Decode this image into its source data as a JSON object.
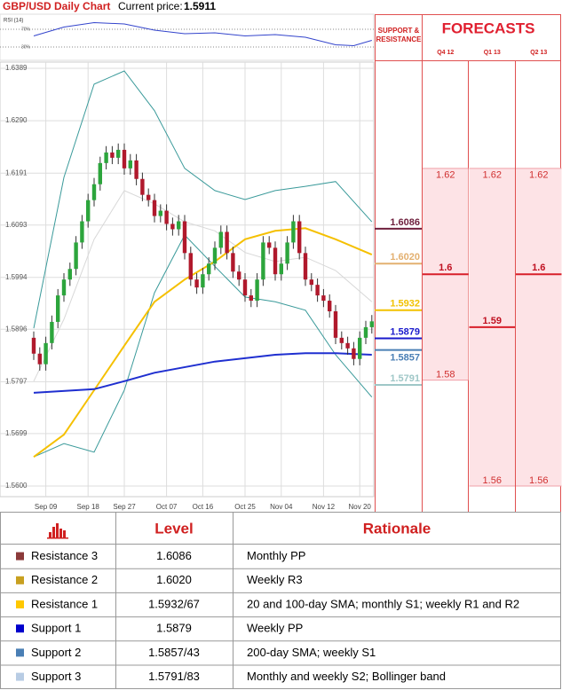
{
  "header": {
    "title": "GBP/USD Daily Chart",
    "price_label": "Current price:",
    "price": 1.5911
  },
  "chart_data": [
    {
      "type": "candlestick",
      "categories": [
        null,
        null,
        "Sep 09",
        null,
        null,
        null,
        null,
        null,
        null,
        "Sep 18",
        null,
        null,
        null,
        null,
        null,
        "Sep 27",
        null,
        null,
        null,
        null,
        null,
        null,
        "Oct 07",
        null,
        null,
        null,
        null,
        null,
        "Oct 16",
        null,
        null,
        null,
        null,
        null,
        null,
        "Oct 25",
        null,
        null,
        null,
        null,
        null,
        "Nov 04",
        null,
        null,
        null,
        null,
        null,
        null,
        "Nov 12",
        null,
        null,
        null,
        null,
        null,
        "Nov 20",
        null,
        null
      ],
      "open": [
        1.588,
        1.585,
        1.583,
        1.587,
        1.591,
        1.596,
        1.599,
        1.601,
        1.606,
        1.61,
        1.614,
        1.617,
        1.621,
        1.623,
        1.622,
        1.6235,
        1.62,
        1.6215,
        1.618,
        1.615,
        1.614,
        1.611,
        1.612,
        1.6095,
        1.6085,
        1.61,
        1.604,
        1.599,
        1.5975,
        1.6,
        1.602,
        1.605,
        1.608,
        1.604,
        1.6005,
        1.599,
        1.596,
        1.595,
        1.599,
        1.606,
        1.605,
        1.6,
        1.602,
        1.606,
        1.61,
        1.604,
        1.599,
        1.598,
        1.596,
        1.595,
        1.593,
        1.588,
        1.587,
        1.586,
        1.584,
        1.588,
        1.59
      ],
      "high": [
        1.5892,
        1.5862,
        1.5882,
        1.5922,
        1.5972,
        1.6002,
        1.6022,
        1.6072,
        1.6112,
        1.6152,
        1.6182,
        1.6222,
        1.6242,
        1.6242,
        1.6247,
        1.6247,
        1.6227,
        1.6227,
        1.6192,
        1.6162,
        1.6152,
        1.6132,
        1.6132,
        1.6107,
        1.6112,
        1.6112,
        1.6052,
        1.6002,
        1.6012,
        1.6032,
        1.6062,
        1.6092,
        1.6092,
        1.6052,
        1.6017,
        1.6002,
        1.5972,
        1.6002,
        1.6072,
        1.6072,
        1.6062,
        1.6032,
        1.6072,
        1.6112,
        1.6112,
        1.6052,
        1.6002,
        1.5992,
        1.5972,
        1.5962,
        1.5942,
        1.5892,
        1.5882,
        1.5872,
        1.5892,
        1.5912,
        1.5923
      ],
      "low": [
        1.5838,
        1.5818,
        1.5818,
        1.5858,
        1.5898,
        1.5948,
        1.5978,
        1.5998,
        1.6048,
        1.6088,
        1.6128,
        1.6158,
        1.6198,
        1.6208,
        1.6208,
        1.6188,
        1.6188,
        1.6168,
        1.6138,
        1.6128,
        1.6098,
        1.6098,
        1.6083,
        1.6073,
        1.6073,
        1.6028,
        1.5978,
        1.5963,
        1.5963,
        1.5988,
        1.6008,
        1.6038,
        1.6028,
        1.5993,
        1.5978,
        1.5948,
        1.5938,
        1.5938,
        1.5978,
        1.6038,
        1.5988,
        1.5988,
        1.6008,
        1.6048,
        1.6028,
        1.5978,
        1.5968,
        1.5948,
        1.5938,
        1.5918,
        1.5868,
        1.5858,
        1.5848,
        1.5828,
        1.5828,
        1.5868,
        1.5888
      ],
      "close": [
        1.585,
        1.583,
        1.587,
        1.591,
        1.596,
        1.599,
        1.601,
        1.606,
        1.61,
        1.614,
        1.617,
        1.621,
        1.623,
        1.622,
        1.6235,
        1.62,
        1.6215,
        1.618,
        1.615,
        1.614,
        1.611,
        1.612,
        1.6095,
        1.6085,
        1.61,
        1.604,
        1.599,
        1.5975,
        1.6,
        1.602,
        1.605,
        1.608,
        1.604,
        1.6005,
        1.599,
        1.596,
        1.595,
        1.599,
        1.606,
        1.605,
        1.6,
        1.602,
        1.606,
        1.61,
        1.604,
        1.599,
        1.598,
        1.596,
        1.595,
        1.593,
        1.588,
        1.587,
        1.586,
        1.584,
        1.588,
        1.59,
        1.5911
      ],
      "up_color": "#2ca53c",
      "down_color": "#b0192c",
      "ylim": [
        1.56,
        1.6389
      ],
      "yticks": [
        1.6389,
        {
          "value": 1.629,
          "label": "1.6290"
        },
        1.6191,
        1.6093,
        1.5994,
        1.5896,
        1.5797,
        1.5699,
        {
          "value": 1.56,
          "label": "1.5600"
        }
      ],
      "grid": true,
      "overlays": [
        {
          "color": "#3a9a9a",
          "x": [
            0,
            5,
            10,
            15,
            20,
            25,
            30,
            35,
            40,
            45,
            50,
            56
          ],
          "values": [
            1.5898,
            1.6183,
            1.6359,
            1.6384,
            1.6309,
            1.62,
            1.6158,
            1.6141,
            1.6158,
            1.6166,
            1.6175,
            1.6099
          ]
        },
        {
          "color": "#3a9a9a",
          "x": [
            0,
            5,
            10,
            15,
            20,
            25,
            30,
            35,
            40,
            45,
            50,
            56
          ],
          "values": [
            1.5655,
            1.568,
            1.5664,
            1.5781,
            1.5965,
            1.6074,
            1.6015,
            1.5957,
            1.5948,
            1.5932,
            1.5848,
            1.5768
          ]
        },
        {
          "color": "#d8d8d8",
          "x": [
            0,
            5,
            10,
            15,
            20,
            25,
            30,
            35,
            40,
            45,
            50,
            56
          ],
          "values": [
            1.5798,
            1.5915,
            1.6066,
            1.6158,
            1.6133,
            1.6099,
            1.6082,
            1.6041,
            1.6024,
            1.6032,
            1.6007,
            1.5948
          ]
        },
        {
          "color": "#f5c000",
          "x": [
            0,
            5,
            10,
            15,
            20,
            25,
            30,
            35,
            40,
            45,
            50,
            56
          ],
          "values": [
            1.5655,
            1.5697,
            1.5781,
            1.5865,
            1.5948,
            1.599,
            1.6024,
            1.6066,
            1.6082,
            1.6087,
            1.6066,
            1.6037
          ]
        },
        {
          "color": "#1f2fd0",
          "x": [
            0,
            10,
            15,
            20,
            30,
            40,
            45,
            50,
            56
          ],
          "values": [
            1.5776,
            1.5783,
            1.5798,
            1.5814,
            1.5835,
            1.5848,
            1.5851,
            1.5851,
            1.5848
          ]
        }
      ],
      "levels": {
        "values": [
          1.6086,
          1.602,
          1.5932,
          1.5879,
          1.5857,
          1.5791
        ],
        "value_labels": [
          "1.6086",
          "1.6020",
          "1.5932",
          "1.5879",
          "1.5857",
          "1.5791"
        ],
        "colors": [
          "#6e1f3c",
          "#e3b070",
          "#f2c200",
          "#1a1acc",
          "#4a7fb5",
          "#9fc7c7"
        ]
      }
    },
    {
      "type": "line",
      "title": "RSI (14)",
      "ylim": [
        0,
        100
      ],
      "yticks": [
        {
          "value": 70,
          "label": "70%"
        },
        {
          "value": 30,
          "label": "30%"
        }
      ],
      "x": [
        0,
        5,
        10,
        15,
        20,
        25,
        30,
        35,
        40,
        45,
        50,
        53,
        56
      ],
      "values": [
        55,
        75,
        85,
        82,
        68,
        60,
        62,
        55,
        58,
        52,
        35,
        33,
        45
      ],
      "color": "#3344cc"
    },
    {
      "type": "range",
      "title": "FORECASTS",
      "subtitle": "SUPPORT & RESISTANCE",
      "categories": [
        "Q4 12",
        "Q1 13",
        "Q2 13"
      ],
      "high": [
        1.62,
        1.62,
        1.62
      ],
      "mid": [
        1.6,
        1.59,
        1.6
      ],
      "low": [
        1.58,
        1.56,
        1.56
      ]
    }
  ],
  "table": {
    "header": {
      "level": "Level",
      "rationale": "Rationale"
    },
    "rows": [
      {
        "name": "Resistance 3",
        "level": "1.6086",
        "rationale": "Monthly PP",
        "color": "#8b3a3a"
      },
      {
        "name": "Resistance 2",
        "level": "1.6020",
        "rationale": "Weekly R3",
        "color": "#c8a020"
      },
      {
        "name": "Resistance 1",
        "level": "1.5932/67",
        "rationale": "20 and 100-day SMA; monthly S1; weekly R1 and R2",
        "color": "#ffc800"
      },
      {
        "name": "Support 1",
        "level": "1.5879",
        "rationale": "Weekly PP",
        "color": "#0000cc"
      },
      {
        "name": "Support 2",
        "level": "1.5857/43",
        "rationale": "200-day SMA; weekly S1",
        "color": "#4a7fb5"
      },
      {
        "name": "Support 3",
        "level": "1.5791/83",
        "rationale": "Monthly and weekly S2; Bollinger band",
        "color": "#b8cce4"
      }
    ]
  }
}
